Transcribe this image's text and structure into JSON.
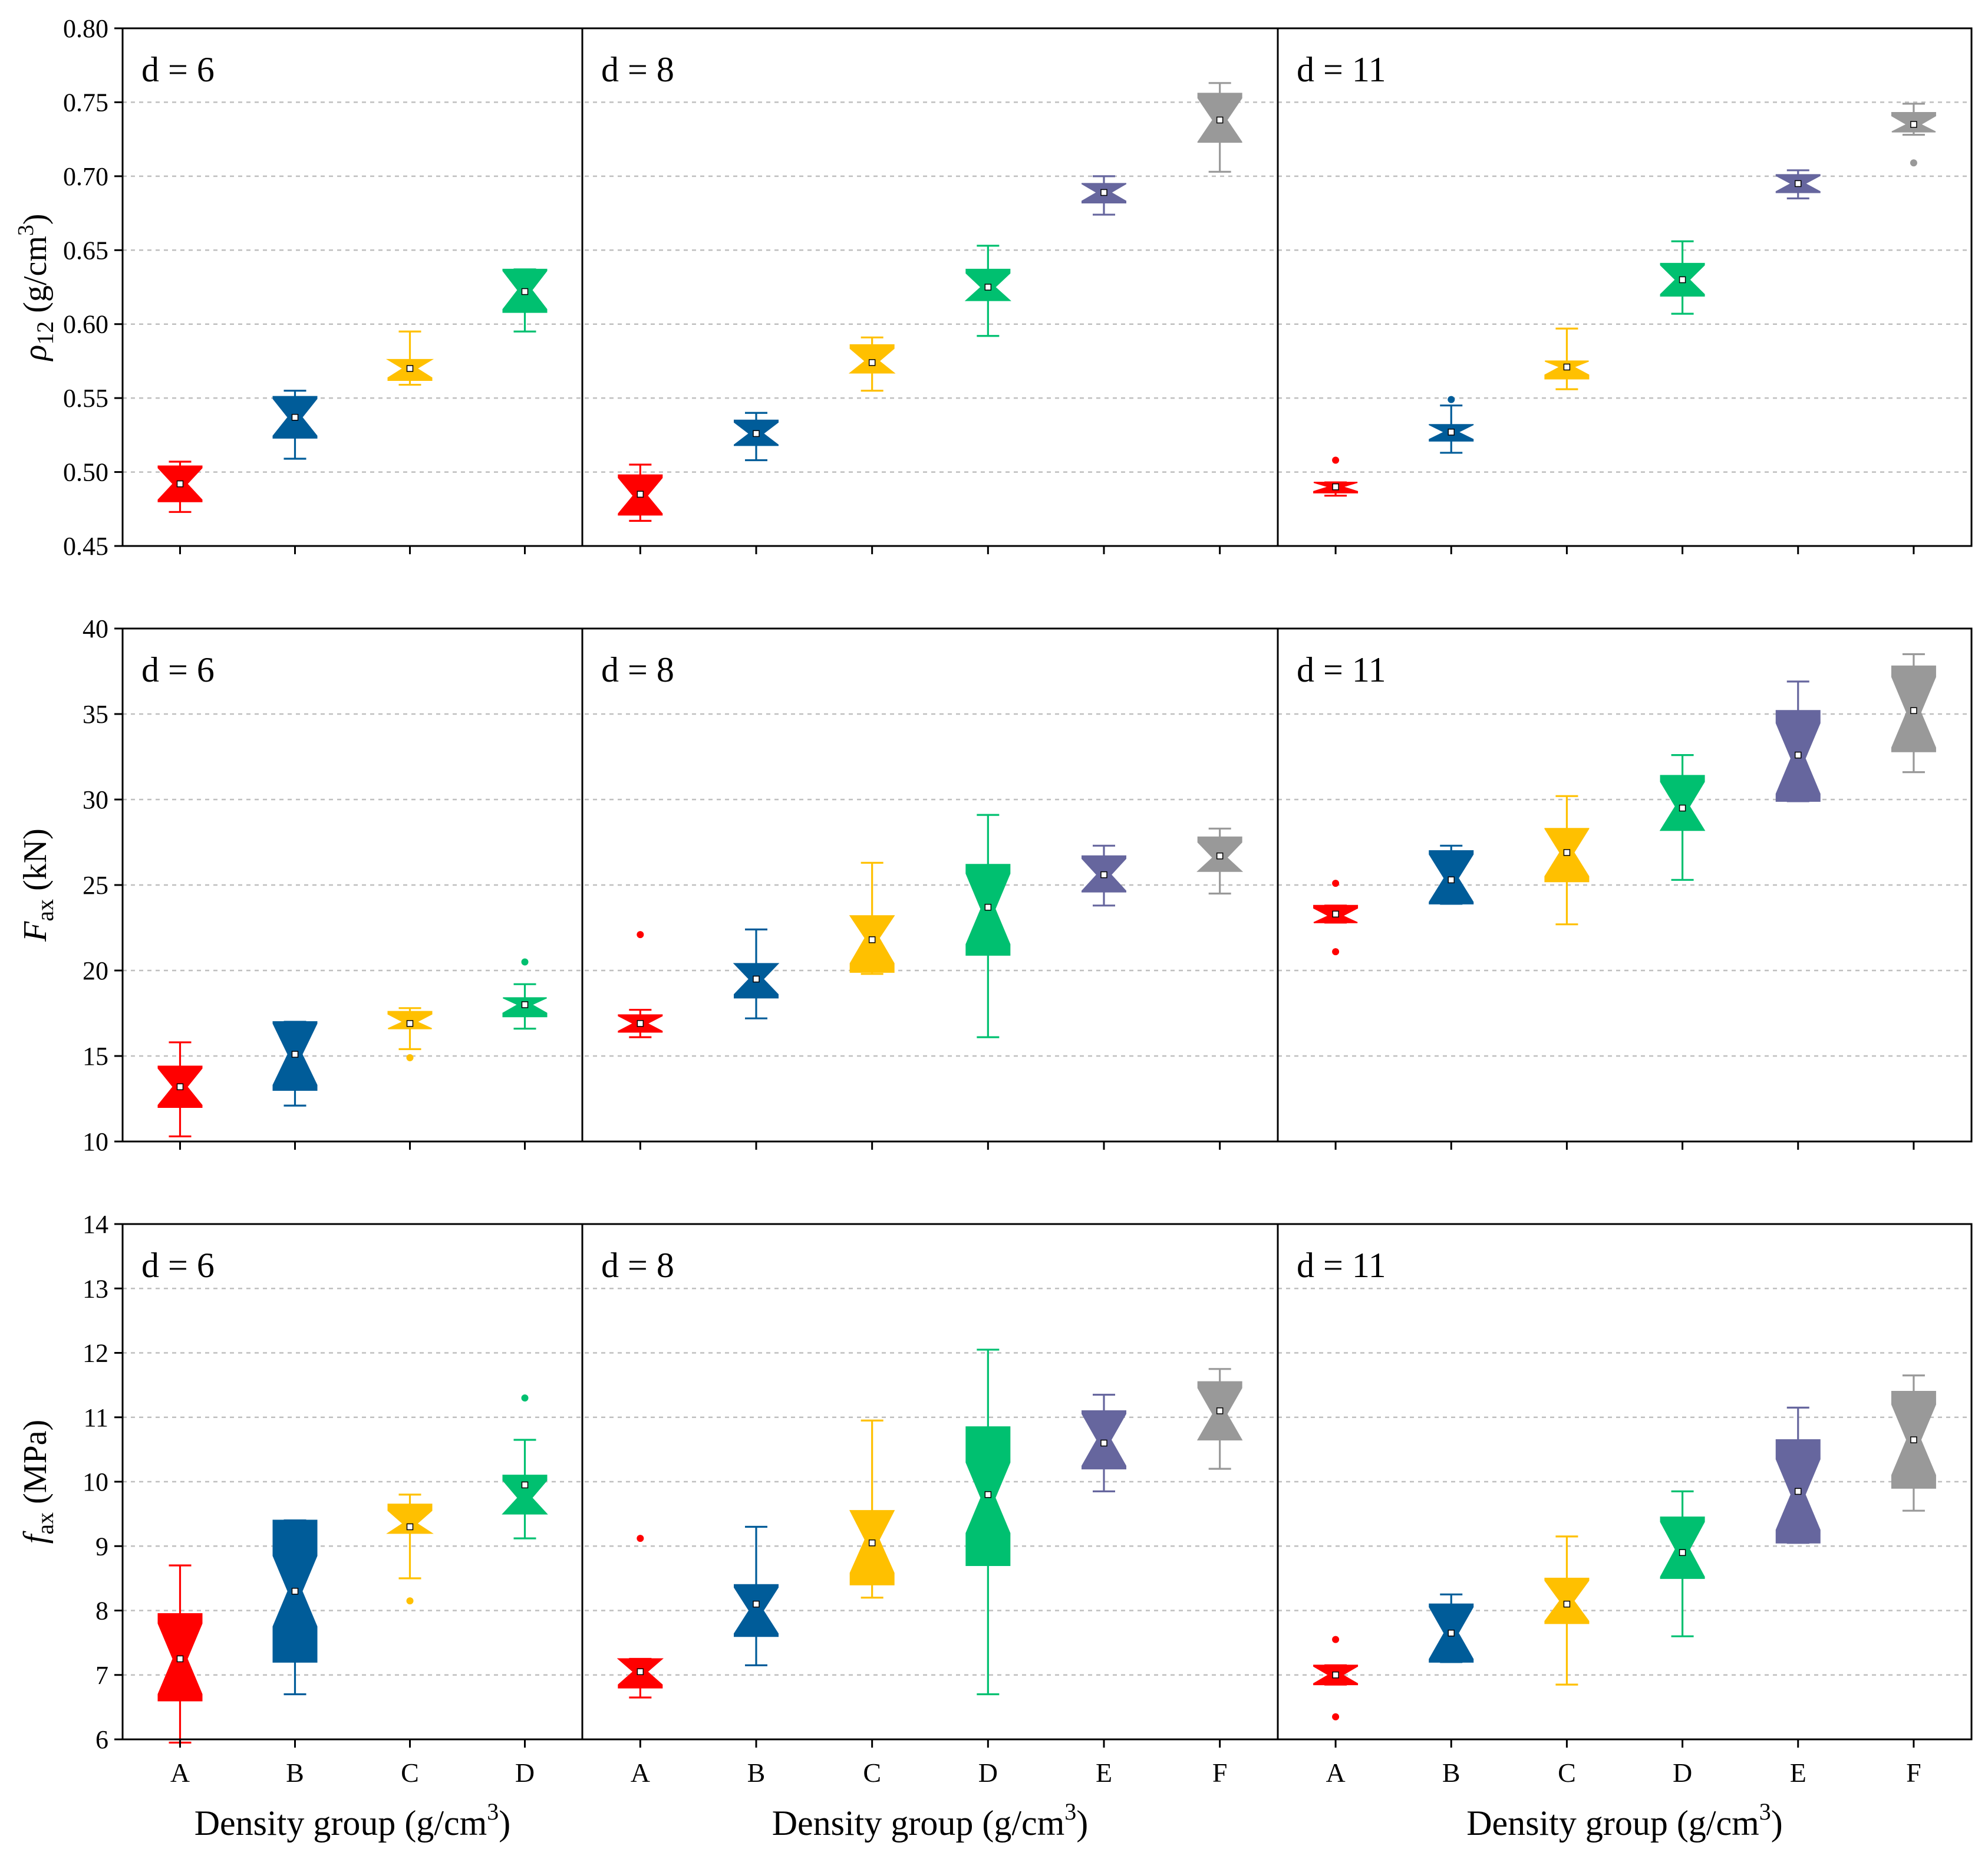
{
  "chart_data": {
    "type": "box",
    "colors": {
      "A": "#ff0000",
      "B": "#005c99",
      "C": "#ffc000",
      "D": "#00c070",
      "E": "#66669e",
      "F": "#999999"
    },
    "panels": [
      {
        "d_label": "d = 6",
        "categories": [
          "A",
          "B",
          "C",
          "D"
        ]
      },
      {
        "d_label": "d = 8",
        "categories": [
          "A",
          "B",
          "C",
          "D",
          "E",
          "F"
        ]
      },
      {
        "d_label": "d = 11",
        "categories": [
          "A",
          "B",
          "C",
          "D",
          "E",
          "F"
        ]
      }
    ],
    "x_title": "Density group (g/cm",
    "x_title_sup": "3",
    "x_title_end": ")",
    "rows": [
      {
        "y_title_main": "ρ",
        "y_title_sub": "12",
        "y_title_unit": " (g/cm",
        "y_title_sup": "3",
        "y_title_end": ")",
        "ylim": [
          0.45,
          0.8
        ],
        "ticks": [
          "0.45",
          "0.50",
          "0.55",
          "0.60",
          "0.65",
          "0.70",
          "0.75",
          "0.80"
        ],
        "grid": [
          0.5,
          0.55,
          0.6,
          0.65,
          0.7,
          0.75
        ],
        "data": [
          [
            {
              "q1": 0.48,
              "med": 0.492,
              "q3": 0.504,
              "lo": 0.473,
              "hi": 0.507,
              "mean": 0.492,
              "out": []
            },
            {
              "q1": 0.523,
              "med": 0.537,
              "q3": 0.551,
              "lo": 0.509,
              "hi": 0.555,
              "mean": 0.537,
              "out": []
            },
            {
              "q1": 0.562,
              "med": 0.57,
              "q3": 0.576,
              "lo": 0.559,
              "hi": 0.595,
              "mean": 0.57,
              "out": []
            },
            {
              "q1": 0.608,
              "med": 0.623,
              "q3": 0.637,
              "lo": 0.595,
              "hi": 0.637,
              "mean": 0.622,
              "out": []
            }
          ],
          [
            {
              "q1": 0.471,
              "med": 0.484,
              "q3": 0.498,
              "lo": 0.467,
              "hi": 0.505,
              "mean": 0.485,
              "out": []
            },
            {
              "q1": 0.518,
              "med": 0.526,
              "q3": 0.535,
              "lo": 0.508,
              "hi": 0.54,
              "mean": 0.526,
              "out": []
            },
            {
              "q1": 0.567,
              "med": 0.575,
              "q3": 0.586,
              "lo": 0.555,
              "hi": 0.591,
              "mean": 0.574,
              "out": []
            },
            {
              "q1": 0.616,
              "med": 0.625,
              "q3": 0.637,
              "lo": 0.592,
              "hi": 0.653,
              "mean": 0.625,
              "out": []
            },
            {
              "q1": 0.682,
              "med": 0.689,
              "q3": 0.695,
              "lo": 0.674,
              "hi": 0.7,
              "mean": 0.689,
              "out": []
            },
            {
              "q1": 0.723,
              "med": 0.738,
              "q3": 0.756,
              "lo": 0.703,
              "hi": 0.763,
              "mean": 0.738,
              "out": []
            }
          ],
          [
            {
              "q1": 0.486,
              "med": 0.49,
              "q3": 0.493,
              "lo": 0.484,
              "hi": 0.493,
              "mean": 0.49,
              "out": [
                0.508
              ]
            },
            {
              "q1": 0.521,
              "med": 0.527,
              "q3": 0.532,
              "lo": 0.513,
              "hi": 0.545,
              "mean": 0.527,
              "out": [
                0.549
              ]
            },
            {
              "q1": 0.563,
              "med": 0.571,
              "q3": 0.575,
              "lo": 0.556,
              "hi": 0.597,
              "mean": 0.571,
              "out": []
            },
            {
              "q1": 0.619,
              "med": 0.63,
              "q3": 0.641,
              "lo": 0.607,
              "hi": 0.656,
              "mean": 0.63,
              "out": []
            },
            {
              "q1": 0.689,
              "med": 0.695,
              "q3": 0.701,
              "lo": 0.685,
              "hi": 0.704,
              "mean": 0.695,
              "out": []
            },
            {
              "q1": 0.73,
              "med": 0.735,
              "q3": 0.743,
              "lo": 0.728,
              "hi": 0.749,
              "mean": 0.735,
              "out": [
                0.709
              ]
            }
          ]
        ]
      },
      {
        "y_title_main": "F",
        "y_title_sub": "ax",
        "y_title_unit": " (kN)",
        "ylim": [
          10,
          40
        ],
        "ticks": [
          "10",
          "15",
          "20",
          "25",
          "30",
          "35",
          "40"
        ],
        "grid": [
          15,
          20,
          25,
          30,
          35
        ],
        "data": [
          [
            {
              "q1": 12.0,
              "med": 13.2,
              "q3": 14.4,
              "lo": 10.3,
              "hi": 15.8,
              "mean": 13.2,
              "out": []
            },
            {
              "q1": 13.0,
              "med": 15.1,
              "q3": 17.0,
              "lo": 12.1,
              "hi": 17.0,
              "mean": 15.1,
              "out": []
            },
            {
              "q1": 16.6,
              "med": 17.0,
              "q3": 17.6,
              "lo": 15.4,
              "hi": 17.8,
              "mean": 16.9,
              "out": [
                14.9
              ]
            },
            {
              "q1": 17.3,
              "med": 18.0,
              "q3": 18.4,
              "lo": 16.6,
              "hi": 19.2,
              "mean": 18.0,
              "out": [
                20.5
              ]
            }
          ],
          [
            {
              "q1": 16.4,
              "med": 16.9,
              "q3": 17.4,
              "lo": 16.1,
              "hi": 17.7,
              "mean": 16.9,
              "out": [
                22.1
              ]
            },
            {
              "q1": 18.4,
              "med": 19.5,
              "q3": 20.4,
              "lo": 17.2,
              "hi": 22.4,
              "mean": 19.5,
              "out": []
            },
            {
              "q1": 19.9,
              "med": 21.9,
              "q3": 23.2,
              "lo": 19.8,
              "hi": 26.3,
              "mean": 21.8,
              "out": []
            },
            {
              "q1": 20.9,
              "med": 23.6,
              "q3": 26.2,
              "lo": 16.1,
              "hi": 29.1,
              "mean": 23.7,
              "out": []
            },
            {
              "q1": 24.6,
              "med": 25.6,
              "q3": 26.7,
              "lo": 23.8,
              "hi": 27.3,
              "mean": 25.6,
              "out": []
            },
            {
              "q1": 25.8,
              "med": 26.6,
              "q3": 27.8,
              "lo": 24.5,
              "hi": 28.3,
              "mean": 26.7,
              "out": []
            }
          ],
          [
            {
              "q1": 22.8,
              "med": 23.2,
              "q3": 23.8,
              "lo": 22.8,
              "hi": 23.8,
              "mean": 23.3,
              "out": [
                21.1,
                25.1
              ]
            },
            {
              "q1": 23.9,
              "med": 25.4,
              "q3": 27.0,
              "lo": 23.9,
              "hi": 27.3,
              "mean": 25.3,
              "out": []
            },
            {
              "q1": 25.2,
              "med": 26.9,
              "q3": 28.3,
              "lo": 22.7,
              "hi": 30.2,
              "mean": 26.9,
              "out": []
            },
            {
              "q1": 28.2,
              "med": 29.6,
              "q3": 31.4,
              "lo": 25.3,
              "hi": 32.6,
              "mean": 29.5,
              "out": []
            },
            {
              "q1": 29.9,
              "med": 32.4,
              "q3": 35.2,
              "lo": 29.9,
              "hi": 36.9,
              "mean": 32.6,
              "out": []
            },
            {
              "q1": 32.8,
              "med": 35.1,
              "q3": 37.8,
              "lo": 31.6,
              "hi": 38.5,
              "mean": 35.2,
              "out": []
            }
          ]
        ]
      },
      {
        "y_title_main": "f",
        "y_title_sub": "ax",
        "y_title_unit": " (MPa)",
        "ylim": [
          6,
          14
        ],
        "ticks": [
          "6",
          "7",
          "8",
          "9",
          "10",
          "11",
          "12",
          "13",
          "14"
        ],
        "grid": [
          7,
          8,
          9,
          10,
          11,
          12,
          13
        ],
        "data": [
          [
            {
              "q1": 6.6,
              "med": 7.25,
              "q3": 7.95,
              "lo": 5.95,
              "hi": 8.7,
              "mean": 7.25,
              "out": []
            },
            {
              "q1": 7.2,
              "med": 8.3,
              "q3": 9.4,
              "lo": 6.7,
              "hi": 9.4,
              "mean": 8.3,
              "out": []
            },
            {
              "q1": 9.2,
              "med": 9.35,
              "q3": 9.65,
              "lo": 8.5,
              "hi": 9.8,
              "mean": 9.3,
              "out": [
                8.15
              ]
            },
            {
              "q1": 9.5,
              "med": 9.75,
              "q3": 10.1,
              "lo": 9.12,
              "hi": 10.65,
              "mean": 9.95,
              "out": [
                11.3
              ]
            }
          ],
          [
            {
              "q1": 6.8,
              "med": 7.05,
              "q3": 7.25,
              "lo": 6.65,
              "hi": 7.25,
              "mean": 7.05,
              "out": [
                9.12
              ]
            },
            {
              "q1": 7.6,
              "med": 8.0,
              "q3": 8.4,
              "lo": 7.15,
              "hi": 9.3,
              "mean": 8.1,
              "out": []
            },
            {
              "q1": 8.4,
              "med": 9.1,
              "q3": 9.55,
              "lo": 8.2,
              "hi": 10.95,
              "mean": 9.05,
              "out": []
            },
            {
              "q1": 8.7,
              "med": 9.75,
              "q3": 10.85,
              "lo": 6.7,
              "hi": 12.05,
              "mean": 9.8,
              "out": []
            },
            {
              "q1": 10.2,
              "med": 10.65,
              "q3": 11.1,
              "lo": 9.85,
              "hi": 11.35,
              "mean": 10.6,
              "out": []
            },
            {
              "q1": 10.65,
              "med": 11.05,
              "q3": 11.55,
              "lo": 10.2,
              "hi": 11.75,
              "mean": 11.1,
              "out": []
            }
          ],
          [
            {
              "q1": 6.85,
              "med": 7.0,
              "q3": 7.15,
              "lo": 6.85,
              "hi": 7.15,
              "mean": 7.0,
              "out": [
                6.35,
                7.55
              ]
            },
            {
              "q1": 7.2,
              "med": 7.65,
              "q3": 8.1,
              "lo": 7.2,
              "hi": 8.25,
              "mean": 7.65,
              "out": []
            },
            {
              "q1": 7.8,
              "med": 8.15,
              "q3": 8.5,
              "lo": 6.85,
              "hi": 9.15,
              "mean": 8.1,
              "out": []
            },
            {
              "q1": 8.5,
              "med": 8.95,
              "q3": 9.45,
              "lo": 7.6,
              "hi": 9.85,
              "mean": 8.9,
              "out": []
            },
            {
              "q1": 9.05,
              "med": 9.8,
              "q3": 10.65,
              "lo": 9.05,
              "hi": 11.15,
              "mean": 9.85,
              "out": []
            },
            {
              "q1": 9.9,
              "med": 10.65,
              "q3": 11.4,
              "lo": 9.55,
              "hi": 11.65,
              "mean": 10.65,
              "out": []
            }
          ]
        ]
      }
    ]
  }
}
